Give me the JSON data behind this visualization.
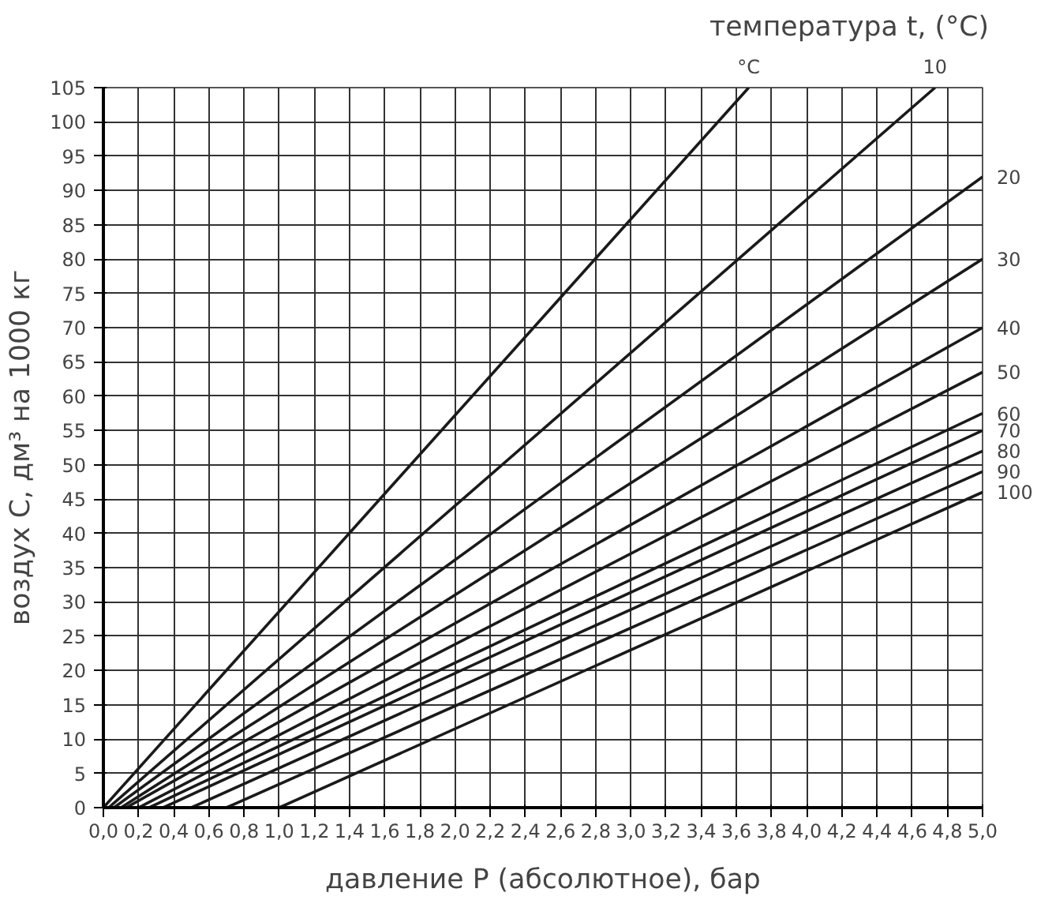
{
  "chart_data": {
    "type": "line",
    "xlabel": "давление P (абсолютное), бар",
    "ylabel": "воздух C, дм³ на 1000 кг",
    "legend_title": "температура t, (°C)",
    "xlim": [
      0,
      5.0
    ],
    "ylim": [
      0,
      105
    ],
    "xticks": [
      {
        "value": 0,
        "label": "0,0"
      },
      {
        "value": 0.2,
        "label": "0,2"
      },
      {
        "value": 0.4,
        "label": "0,4"
      },
      {
        "value": 0.6,
        "label": "0,6"
      },
      {
        "value": 0.8,
        "label": "0,8"
      },
      {
        "value": 1.0,
        "label": "1,0"
      },
      {
        "value": 1.2,
        "label": "1,2"
      },
      {
        "value": 1.4,
        "label": "1,4"
      },
      {
        "value": 1.6,
        "label": "1,6"
      },
      {
        "value": 1.8,
        "label": "1,8"
      },
      {
        "value": 2.0,
        "label": "2,0"
      },
      {
        "value": 2.2,
        "label": "2,2"
      },
      {
        "value": 2.4,
        "label": "2,4"
      },
      {
        "value": 2.6,
        "label": "2,6"
      },
      {
        "value": 2.8,
        "label": "2,8"
      },
      {
        "value": 3.0,
        "label": "3,0"
      },
      {
        "value": 3.2,
        "label": "3,2"
      },
      {
        "value": 3.4,
        "label": "3,4"
      },
      {
        "value": 3.6,
        "label": "3,6"
      },
      {
        "value": 3.8,
        "label": "3,8"
      },
      {
        "value": 4.0,
        "label": "4,0"
      },
      {
        "value": 4.2,
        "label": "4,2"
      },
      {
        "value": 4.4,
        "label": "4,4"
      },
      {
        "value": 4.6,
        "label": "4,6"
      },
      {
        "value": 4.8,
        "label": "4,8"
      },
      {
        "value": 5.0,
        "label": "5,0"
      }
    ],
    "yticks": [
      0,
      5,
      10,
      15,
      20,
      25,
      30,
      35,
      40,
      45,
      50,
      55,
      60,
      65,
      70,
      75,
      80,
      85,
      90,
      95,
      100,
      105
    ],
    "grid": true,
    "legend": false,
    "marker": "none",
    "line_style": "solid",
    "series": [
      {
        "name": "°C",
        "color": "#1a1a1a",
        "x": [
          0.0,
          3.67
        ],
        "values": [
          0,
          105
        ]
      },
      {
        "name": "10",
        "color": "#1a1a1a",
        "x": [
          0.03,
          4.73
        ],
        "values": [
          0,
          105
        ]
      },
      {
        "name": "20",
        "color": "#1a1a1a",
        "x": [
          0.06,
          5.0
        ],
        "values": [
          0,
          92
        ]
      },
      {
        "name": "30",
        "color": "#1a1a1a",
        "x": [
          0.1,
          5.0
        ],
        "values": [
          0,
          80
        ]
      },
      {
        "name": "40",
        "color": "#1a1a1a",
        "x": [
          0.13,
          5.0
        ],
        "values": [
          0,
          70
        ]
      },
      {
        "name": "50",
        "color": "#1a1a1a",
        "x": [
          0.2,
          5.0
        ],
        "values": [
          0,
          63.5
        ]
      },
      {
        "name": "60",
        "color": "#1a1a1a",
        "x": [
          0.26,
          5.0
        ],
        "values": [
          0,
          57.5
        ]
      },
      {
        "name": "70",
        "color": "#1a1a1a",
        "x": [
          0.34,
          5.0
        ],
        "values": [
          0,
          55
        ]
      },
      {
        "name": "80",
        "color": "#1a1a1a",
        "x": [
          0.5,
          5.0
        ],
        "values": [
          0,
          52
        ]
      },
      {
        "name": "90",
        "color": "#1a1a1a",
        "x": [
          0.7,
          5.0
        ],
        "values": [
          0,
          49
        ]
      },
      {
        "name": "100",
        "color": "#1a1a1a",
        "x": [
          1.0,
          5.0
        ],
        "values": [
          0,
          46
        ]
      }
    ]
  }
}
